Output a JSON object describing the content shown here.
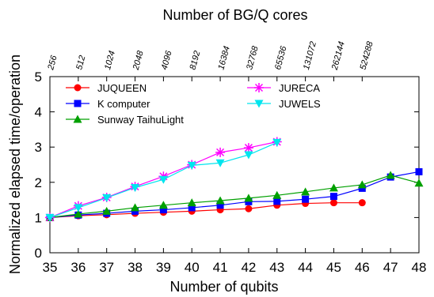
{
  "chart_data": {
    "type": "line",
    "xlabel": "Number of qubits",
    "ylabel": "Normalized elapsed time/operation",
    "x2label": "Number of BG/Q cores",
    "xlim": [
      35,
      48
    ],
    "ylim": [
      0,
      5
    ],
    "xticks": [
      35,
      36,
      37,
      38,
      39,
      40,
      41,
      42,
      43,
      44,
      45,
      46,
      47,
      48
    ],
    "yticks": [
      0,
      1,
      2,
      3,
      4,
      5
    ],
    "x2ticks": [
      {
        "x": 35,
        "label": "256"
      },
      {
        "x": 36,
        "label": "512"
      },
      {
        "x": 37,
        "label": "1024"
      },
      {
        "x": 38,
        "label": "2048"
      },
      {
        "x": 39,
        "label": "4096"
      },
      {
        "x": 40,
        "label": "8192"
      },
      {
        "x": 41,
        "label": "16384"
      },
      {
        "x": 42,
        "label": "32768"
      },
      {
        "x": 43,
        "label": "65536"
      },
      {
        "x": 44,
        "label": "131072"
      },
      {
        "x": 45,
        "label": "262144"
      },
      {
        "x": 46,
        "label": "524288"
      }
    ],
    "grid": false,
    "legend": "top-left",
    "series": [
      {
        "name": "JUQUEEN",
        "color": "#ff0000",
        "marker": "circle",
        "x": [
          35,
          36,
          37,
          38,
          39,
          40,
          41,
          42,
          43,
          44,
          45,
          46
        ],
        "values": [
          1.0,
          1.05,
          1.08,
          1.12,
          1.15,
          1.18,
          1.22,
          1.25,
          1.35,
          1.4,
          1.42,
          1.42
        ]
      },
      {
        "name": "K computer",
        "color": "#0000ff",
        "marker": "square",
        "x": [
          35,
          36,
          37,
          38,
          39,
          40,
          41,
          42,
          43,
          44,
          45,
          46,
          47,
          48
        ],
        "values": [
          1.0,
          1.07,
          1.12,
          1.18,
          1.22,
          1.28,
          1.35,
          1.45,
          1.46,
          1.52,
          1.6,
          1.83,
          2.15,
          2.3
        ]
      },
      {
        "name": "Sunway TaihuLight",
        "color": "#00a000",
        "marker": "triangle",
        "x": [
          35,
          36,
          37,
          38,
          39,
          40,
          41,
          42,
          43,
          44,
          45,
          46,
          47,
          48
        ],
        "values": [
          1.0,
          1.1,
          1.18,
          1.28,
          1.35,
          1.42,
          1.48,
          1.55,
          1.63,
          1.73,
          1.84,
          1.93,
          2.2,
          1.98
        ]
      },
      {
        "name": "JURECA",
        "color": "#ff00ff",
        "marker": "star",
        "x": [
          35,
          36,
          37,
          38,
          39,
          40,
          41,
          42,
          43
        ],
        "values": [
          1.0,
          1.33,
          1.57,
          1.88,
          2.17,
          2.5,
          2.85,
          2.98,
          3.15
        ]
      },
      {
        "name": "JUWELS",
        "color": "#00e5ee",
        "marker": "triangle-down",
        "x": [
          35,
          36,
          37,
          38,
          39,
          40,
          41,
          42,
          43
        ],
        "values": [
          1.0,
          1.28,
          1.56,
          1.85,
          2.08,
          2.48,
          2.55,
          2.78,
          3.13
        ]
      }
    ]
  }
}
